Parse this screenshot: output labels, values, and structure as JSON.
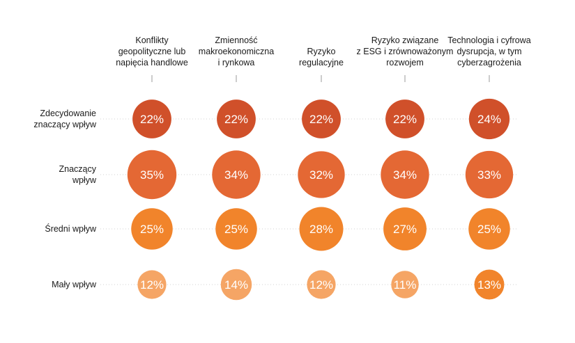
{
  "chart_data": {
    "type": "bubble-matrix",
    "title": "",
    "unit": "%",
    "columns": [
      [
        "Konflikty",
        "geopolityczne lub",
        "napięcia handlowe"
      ],
      [
        "Zmienność",
        "makroekonomiczna",
        "i rynkowa"
      ],
      [
        "Ryzyko",
        "regulacyjne"
      ],
      [
        "Ryzyko związane",
        "z ESG i zrównoważonym",
        "rozwojem"
      ],
      [
        "Technologia i cyfrowa",
        "dysrupcja, w tym",
        "cyberzagrożenia"
      ]
    ],
    "rows": [
      {
        "label": [
          "Zdecydowanie",
          "znaczący wpływ"
        ],
        "color": "#d0502a",
        "values": [
          22,
          22,
          22,
          22,
          24
        ]
      },
      {
        "label": [
          "Znaczący",
          "wpływ"
        ],
        "color": "#e46834",
        "values": [
          35,
          34,
          32,
          34,
          33
        ]
      },
      {
        "label": [
          "Średni wpływ"
        ],
        "color": "#f1842b",
        "values": [
          25,
          25,
          28,
          27,
          25
        ]
      },
      {
        "label": [
          "Mały wpływ"
        ],
        "color": "#f5a565",
        "values": [
          12,
          14,
          12,
          11,
          13
        ],
        "colors": [
          "#f5a565",
          "#f5a565",
          "#f5a565",
          "#f5a565",
          "#f1842b"
        ]
      }
    ],
    "tick_color": "#9a9a9a",
    "guide_color": "#d0d0d0"
  }
}
